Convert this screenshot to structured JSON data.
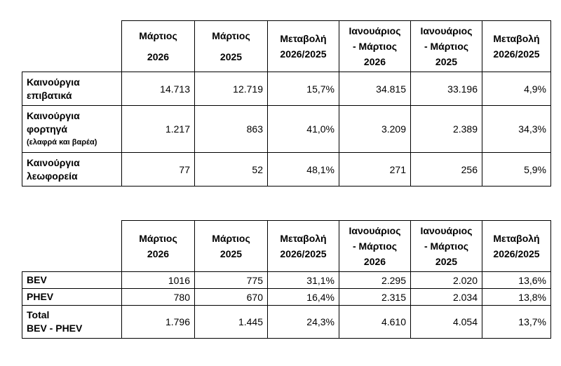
{
  "table1": {
    "headers": {
      "c1": [
        "Μάρτιος",
        "2026"
      ],
      "c2": [
        "Μάρτιος",
        "2025"
      ],
      "c3": [
        "Μεταβολή",
        "2026/2025"
      ],
      "c4": [
        "Ιανουάριος",
        "- Μάρτιος",
        "2026"
      ],
      "c5": [
        "Ιανουάριος",
        "- Μάρτιος",
        "2025"
      ],
      "c6": [
        "Μεταβολή",
        "2026/2025"
      ]
    },
    "rows": [
      {
        "label": [
          "Καινούργια",
          "επιβατικά"
        ],
        "values": [
          "14.713",
          "12.719",
          "15,7%",
          "34.815",
          "33.196",
          "4,9%"
        ]
      },
      {
        "label": [
          "Καινούργια",
          "φορτηγά",
          "(ελαφρά και βαρέα)"
        ],
        "values": [
          "1.217",
          "863",
          "41,0%",
          "3.209",
          "2.389",
          "34,3%"
        ]
      },
      {
        "label": [
          "Καινούργια",
          "λεωφορεία"
        ],
        "values": [
          "77",
          "52",
          "48,1%",
          "271",
          "256",
          "5,9%"
        ]
      }
    ]
  },
  "table2": {
    "headers": {
      "c1": [
        "Μάρτιος",
        "2026"
      ],
      "c2": [
        "Μάρτιος",
        "2025"
      ],
      "c3": [
        "Μεταβολή",
        "2026/2025"
      ],
      "c4": [
        "Ιανουάριος",
        "- Μάρτιος",
        "2026"
      ],
      "c5": [
        "Ιανουάριος",
        "- Μάρτιος",
        "2025"
      ],
      "c6": [
        "Μεταβολή",
        "2026/2025"
      ]
    },
    "rows": [
      {
        "label": [
          "BEV"
        ],
        "values": [
          "1016",
          "775",
          "31,1%",
          "2.295",
          "2.020",
          "13,6%"
        ]
      },
      {
        "label": [
          "PHEV"
        ],
        "values": [
          "780",
          "670",
          "16,4%",
          "2.315",
          "2.034",
          "13,8%"
        ]
      },
      {
        "label": [
          "Total",
          "BEV - PHEV"
        ],
        "values": [
          "1.796",
          "1.445",
          "24,3%",
          "4.610",
          "4.054",
          "13,7%"
        ]
      }
    ]
  }
}
